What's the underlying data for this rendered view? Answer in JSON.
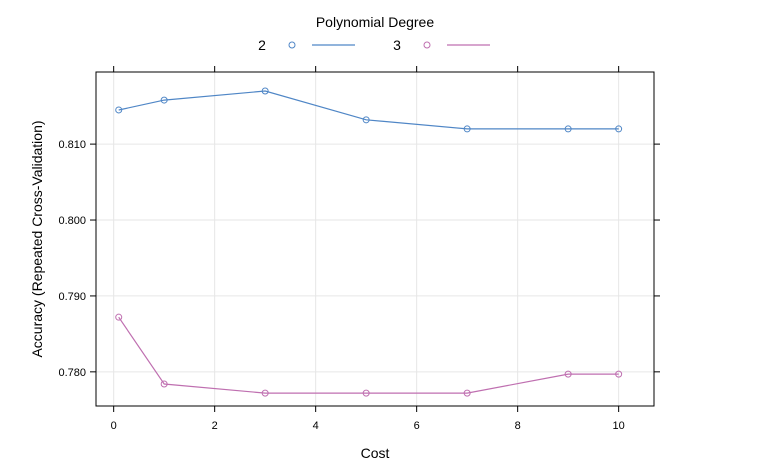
{
  "chart_data": {
    "type": "line",
    "title": "",
    "legend_title": "Polynomial Degree",
    "legend_position": "top",
    "xlabel": "Cost",
    "ylabel": "Accuracy (Repeated Cross-Validation)",
    "xlim": [
      -0.35,
      10.7
    ],
    "ylim": [
      0.7755,
      0.8195
    ],
    "x_ticks": [
      0,
      2,
      4,
      6,
      8,
      10
    ],
    "x_tick_labels": [
      "0",
      "2",
      "4",
      "6",
      "8",
      "10"
    ],
    "y_ticks": [
      0.78,
      0.79,
      0.8,
      0.81
    ],
    "y_tick_labels": [
      "0.780",
      "0.790",
      "0.800",
      "0.810"
    ],
    "grid": true,
    "x": [
      0.1,
      1,
      3,
      5,
      7,
      9,
      10
    ],
    "series": [
      {
        "name": "2",
        "color": "#4f86c6",
        "values": [
          0.8145,
          0.8158,
          0.817,
          0.8132,
          0.812,
          0.812,
          0.812
        ]
      },
      {
        "name": "3",
        "color": "#bf6fb0",
        "values": [
          0.7872,
          0.7784,
          0.7772,
          0.7772,
          0.7772,
          0.7797,
          0.7797
        ]
      }
    ]
  }
}
